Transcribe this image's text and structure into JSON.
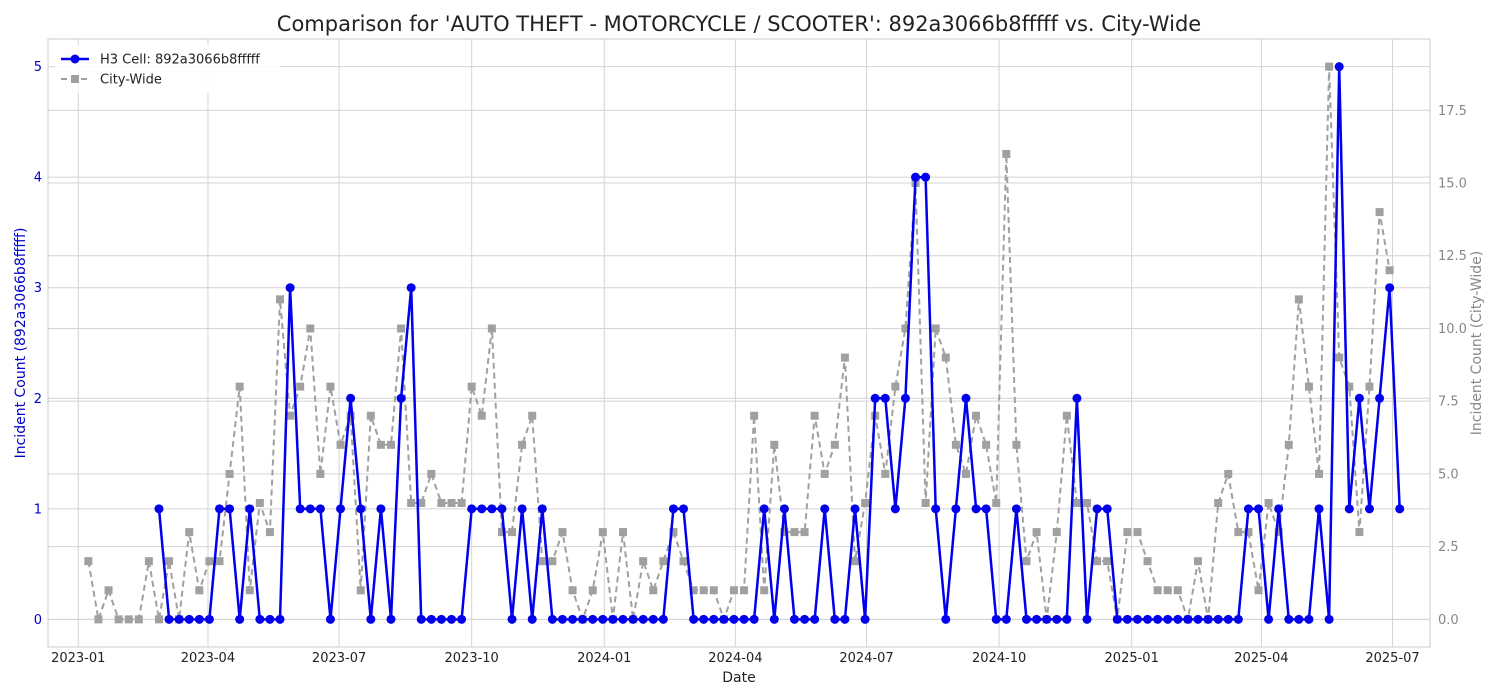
{
  "chart_data": {
    "type": "line",
    "title": "Comparison for 'AUTO THEFT - MOTORCYCLE / SCOOTER': 892a3066b8fffff vs. City-Wide",
    "xlabel": "Date",
    "ylabel_left": "Incident Count (892a3066b8fffff)",
    "ylabel_right": "Incident Count (City-Wide)",
    "x_ticks": [
      "2023-01",
      "2023-04",
      "2023-07",
      "2023-10",
      "2024-01",
      "2024-04",
      "2024-07",
      "2024-10",
      "2025-01",
      "2025-04",
      "2025-07"
    ],
    "y_ticks_left": [
      "0",
      "1",
      "2",
      "3",
      "4",
      "5"
    ],
    "y_ticks_right": [
      "0.0",
      "2.5",
      "5.0",
      "7.5",
      "10.0",
      "12.5",
      "15.0",
      "17.5"
    ],
    "ylim_left": [
      -0.25,
      5.25
    ],
    "ylim_right": [
      -0.95,
      19.95
    ],
    "xlim": [
      "2022-12-11",
      "2025-07-27"
    ],
    "grid": true,
    "legend_position": "top-left",
    "colors": {
      "h3": "#0000ee",
      "city": "#a0a0a0",
      "left_axis_text": "#0000cc",
      "right_axis_text": "#888888"
    },
    "series": [
      {
        "name": "H3 Cell: 892a3066b8fffff",
        "axis": "left",
        "points": [
          [
            "2023-02-26",
            1
          ],
          [
            "2023-03-05",
            0
          ],
          [
            "2023-03-12",
            0
          ],
          [
            "2023-03-19",
            0
          ],
          [
            "2023-03-26",
            0
          ],
          [
            "2023-04-02",
            0
          ],
          [
            "2023-04-09",
            1
          ],
          [
            "2023-04-16",
            1
          ],
          [
            "2023-04-23",
            0
          ],
          [
            "2023-04-30",
            1
          ],
          [
            "2023-05-07",
            0
          ],
          [
            "2023-05-14",
            0
          ],
          [
            "2023-05-21",
            0
          ],
          [
            "2023-05-28",
            3
          ],
          [
            "2023-06-04",
            1
          ],
          [
            "2023-06-11",
            1
          ],
          [
            "2023-06-18",
            1
          ],
          [
            "2023-06-25",
            0
          ],
          [
            "2023-07-02",
            1
          ],
          [
            "2023-07-09",
            2
          ],
          [
            "2023-07-16",
            1
          ],
          [
            "2023-07-23",
            0
          ],
          [
            "2023-07-30",
            1
          ],
          [
            "2023-08-06",
            0
          ],
          [
            "2023-08-13",
            2
          ],
          [
            "2023-08-20",
            3
          ],
          [
            "2023-08-27",
            0
          ],
          [
            "2023-09-03",
            0
          ],
          [
            "2023-09-10",
            0
          ],
          [
            "2023-09-17",
            0
          ],
          [
            "2023-09-24",
            0
          ],
          [
            "2023-10-01",
            1
          ],
          [
            "2023-10-08",
            1
          ],
          [
            "2023-10-15",
            1
          ],
          [
            "2023-10-22",
            1
          ],
          [
            "2023-10-29",
            0
          ],
          [
            "2023-11-05",
            1
          ],
          [
            "2023-11-12",
            0
          ],
          [
            "2023-11-19",
            1
          ],
          [
            "2023-11-26",
            0
          ],
          [
            "2023-12-03",
            0
          ],
          [
            "2023-12-10",
            0
          ],
          [
            "2023-12-17",
            0
          ],
          [
            "2023-12-24",
            0
          ],
          [
            "2023-12-31",
            0
          ],
          [
            "2024-01-07",
            0
          ],
          [
            "2024-01-14",
            0
          ],
          [
            "2024-01-21",
            0
          ],
          [
            "2024-01-28",
            0
          ],
          [
            "2024-02-04",
            0
          ],
          [
            "2024-02-11",
            0
          ],
          [
            "2024-02-18",
            1
          ],
          [
            "2024-02-25",
            1
          ],
          [
            "2024-03-03",
            0
          ],
          [
            "2024-03-10",
            0
          ],
          [
            "2024-03-17",
            0
          ],
          [
            "2024-03-24",
            0
          ],
          [
            "2024-03-31",
            0
          ],
          [
            "2024-04-07",
            0
          ],
          [
            "2024-04-14",
            0
          ],
          [
            "2024-04-21",
            1
          ],
          [
            "2024-04-28",
            0
          ],
          [
            "2024-05-05",
            1
          ],
          [
            "2024-05-12",
            0
          ],
          [
            "2024-05-19",
            0
          ],
          [
            "2024-05-26",
            0
          ],
          [
            "2024-06-02",
            1
          ],
          [
            "2024-06-09",
            0
          ],
          [
            "2024-06-16",
            0
          ],
          [
            "2024-06-23",
            1
          ],
          [
            "2024-06-30",
            0
          ],
          [
            "2024-07-07",
            2
          ],
          [
            "2024-07-14",
            2
          ],
          [
            "2024-07-21",
            1
          ],
          [
            "2024-07-28",
            2
          ],
          [
            "2024-08-04",
            4
          ],
          [
            "2024-08-11",
            4
          ],
          [
            "2024-08-18",
            1
          ],
          [
            "2024-08-25",
            0
          ],
          [
            "2024-09-01",
            1
          ],
          [
            "2024-09-08",
            2
          ],
          [
            "2024-09-15",
            1
          ],
          [
            "2024-09-22",
            1
          ],
          [
            "2024-09-29",
            0
          ],
          [
            "2024-10-06",
            0
          ],
          [
            "2024-10-13",
            1
          ],
          [
            "2024-10-20",
            0
          ],
          [
            "2024-10-27",
            0
          ],
          [
            "2024-11-03",
            0
          ],
          [
            "2024-11-10",
            0
          ],
          [
            "2024-11-17",
            0
          ],
          [
            "2024-11-24",
            2
          ],
          [
            "2024-12-01",
            0
          ],
          [
            "2024-12-08",
            1
          ],
          [
            "2024-12-15",
            1
          ],
          [
            "2024-12-22",
            0
          ],
          [
            "2024-12-29",
            0
          ],
          [
            "2025-01-05",
            0
          ],
          [
            "2025-01-12",
            0
          ],
          [
            "2025-01-19",
            0
          ],
          [
            "2025-01-26",
            0
          ],
          [
            "2025-02-02",
            0
          ],
          [
            "2025-02-09",
            0
          ],
          [
            "2025-02-16",
            0
          ],
          [
            "2025-02-23",
            0
          ],
          [
            "2025-03-02",
            0
          ],
          [
            "2025-03-09",
            0
          ],
          [
            "2025-03-16",
            0
          ],
          [
            "2025-03-23",
            1
          ],
          [
            "2025-03-30",
            1
          ],
          [
            "2025-04-06",
            0
          ],
          [
            "2025-04-13",
            1
          ],
          [
            "2025-04-20",
            0
          ],
          [
            "2025-04-27",
            0
          ],
          [
            "2025-05-04",
            0
          ],
          [
            "2025-05-11",
            1
          ],
          [
            "2025-05-18",
            0
          ],
          [
            "2025-05-25",
            5
          ],
          [
            "2025-06-01",
            1
          ],
          [
            "2025-06-08",
            2
          ],
          [
            "2025-06-15",
            1
          ],
          [
            "2025-06-22",
            2
          ],
          [
            "2025-06-29",
            3
          ],
          [
            "2025-07-06",
            1
          ]
        ]
      },
      {
        "name": "City-Wide",
        "axis": "right",
        "points": [
          [
            "2023-01-08",
            2
          ],
          [
            "2023-01-15",
            0
          ],
          [
            "2023-01-22",
            1
          ],
          [
            "2023-01-29",
            0
          ],
          [
            "2023-02-05",
            0
          ],
          [
            "2023-02-12",
            0
          ],
          [
            "2023-02-19",
            2
          ],
          [
            "2023-02-26",
            0
          ],
          [
            "2023-03-05",
            2
          ],
          [
            "2023-03-12",
            0
          ],
          [
            "2023-03-19",
            3
          ],
          [
            "2023-03-26",
            1
          ],
          [
            "2023-04-02",
            2
          ],
          [
            "2023-04-09",
            2
          ],
          [
            "2023-04-16",
            5
          ],
          [
            "2023-04-23",
            8
          ],
          [
            "2023-04-30",
            1
          ],
          [
            "2023-05-07",
            4
          ],
          [
            "2023-05-14",
            3
          ],
          [
            "2023-05-21",
            11
          ],
          [
            "2023-05-28",
            7
          ],
          [
            "2023-06-04",
            8
          ],
          [
            "2023-06-11",
            10
          ],
          [
            "2023-06-18",
            5
          ],
          [
            "2023-06-25",
            8
          ],
          [
            "2023-07-02",
            6
          ],
          [
            "2023-07-09",
            7
          ],
          [
            "2023-07-16",
            1
          ],
          [
            "2023-07-23",
            7
          ],
          [
            "2023-07-30",
            6
          ],
          [
            "2023-08-06",
            6
          ],
          [
            "2023-08-13",
            10
          ],
          [
            "2023-08-20",
            4
          ],
          [
            "2023-08-27",
            4
          ],
          [
            "2023-09-03",
            5
          ],
          [
            "2023-09-10",
            4
          ],
          [
            "2023-09-17",
            4
          ],
          [
            "2023-09-24",
            4
          ],
          [
            "2023-10-01",
            8
          ],
          [
            "2023-10-08",
            7
          ],
          [
            "2023-10-15",
            10
          ],
          [
            "2023-10-22",
            3
          ],
          [
            "2023-10-29",
            3
          ],
          [
            "2023-11-05",
            6
          ],
          [
            "2023-11-12",
            7
          ],
          [
            "2023-11-19",
            2
          ],
          [
            "2023-11-26",
            2
          ],
          [
            "2023-12-03",
            3
          ],
          [
            "2023-12-10",
            1
          ],
          [
            "2023-12-17",
            0
          ],
          [
            "2023-12-24",
            1
          ],
          [
            "2023-12-31",
            3
          ],
          [
            "2024-01-07",
            0
          ],
          [
            "2024-01-14",
            3
          ],
          [
            "2024-01-21",
            0
          ],
          [
            "2024-01-28",
            2
          ],
          [
            "2024-02-04",
            1
          ],
          [
            "2024-02-11",
            2
          ],
          [
            "2024-02-18",
            3
          ],
          [
            "2024-02-25",
            2
          ],
          [
            "2024-03-03",
            1
          ],
          [
            "2024-03-10",
            1
          ],
          [
            "2024-03-17",
            1
          ],
          [
            "2024-03-24",
            0
          ],
          [
            "2024-03-31",
            1
          ],
          [
            "2024-04-07",
            1
          ],
          [
            "2024-04-14",
            7
          ],
          [
            "2024-04-21",
            1
          ],
          [
            "2024-04-28",
            6
          ],
          [
            "2024-05-05",
            3
          ],
          [
            "2024-05-12",
            3
          ],
          [
            "2024-05-19",
            3
          ],
          [
            "2024-05-26",
            7
          ],
          [
            "2024-06-02",
            5
          ],
          [
            "2024-06-09",
            6
          ],
          [
            "2024-06-16",
            9
          ],
          [
            "2024-06-23",
            2
          ],
          [
            "2024-06-30",
            4
          ],
          [
            "2024-07-07",
            7
          ],
          [
            "2024-07-14",
            5
          ],
          [
            "2024-07-21",
            8
          ],
          [
            "2024-07-28",
            10
          ],
          [
            "2024-08-04",
            15
          ],
          [
            "2024-08-11",
            4
          ],
          [
            "2024-08-18",
            10
          ],
          [
            "2024-08-25",
            9
          ],
          [
            "2024-09-01",
            6
          ],
          [
            "2024-09-08",
            5
          ],
          [
            "2024-09-15",
            7
          ],
          [
            "2024-09-22",
            6
          ],
          [
            "2024-09-29",
            4
          ],
          [
            "2024-10-06",
            16
          ],
          [
            "2024-10-13",
            6
          ],
          [
            "2024-10-20",
            2
          ],
          [
            "2024-10-27",
            3
          ],
          [
            "2024-11-03",
            0
          ],
          [
            "2024-11-10",
            3
          ],
          [
            "2024-11-17",
            7
          ],
          [
            "2024-11-24",
            4
          ],
          [
            "2024-12-01",
            4
          ],
          [
            "2024-12-08",
            2
          ],
          [
            "2024-12-15",
            2
          ],
          [
            "2024-12-22",
            0
          ],
          [
            "2024-12-29",
            3
          ],
          [
            "2025-01-05",
            3
          ],
          [
            "2025-01-12",
            2
          ],
          [
            "2025-01-19",
            1
          ],
          [
            "2025-01-26",
            1
          ],
          [
            "2025-02-02",
            1
          ],
          [
            "2025-02-09",
            0
          ],
          [
            "2025-02-16",
            2
          ],
          [
            "2025-02-23",
            0
          ],
          [
            "2025-03-02",
            4
          ],
          [
            "2025-03-09",
            5
          ],
          [
            "2025-03-16",
            3
          ],
          [
            "2025-03-23",
            3
          ],
          [
            "2025-03-30",
            1
          ],
          [
            "2025-04-06",
            4
          ],
          [
            "2025-04-13",
            3
          ],
          [
            "2025-04-20",
            6
          ],
          [
            "2025-04-27",
            11
          ],
          [
            "2025-05-04",
            8
          ],
          [
            "2025-05-11",
            5
          ],
          [
            "2025-05-18",
            19
          ],
          [
            "2025-05-25",
            9
          ],
          [
            "2025-06-01",
            8
          ],
          [
            "2025-06-08",
            3
          ],
          [
            "2025-06-15",
            8
          ],
          [
            "2025-06-22",
            14
          ],
          [
            "2025-06-29",
            12
          ]
        ]
      }
    ]
  }
}
